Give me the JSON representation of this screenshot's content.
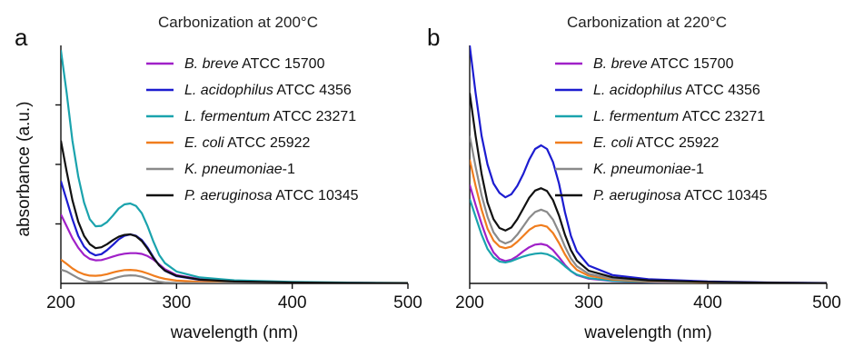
{
  "figure": {
    "ylabel": "absorbance (a.u.)"
  },
  "chart_data": [
    {
      "type": "line",
      "panel_letter": "a",
      "title": "Carbonization at 200°C",
      "xlabel": "wavelength (nm)",
      "ylabel": "absorbance (a.u.)",
      "xlim": [
        200,
        500
      ],
      "ylim": [
        0,
        1.0
      ],
      "xticks": [
        200,
        300,
        400,
        500
      ],
      "yticks": [
        0.25,
        0.5,
        0.75
      ],
      "grid": false,
      "legend_position": "top-right",
      "series": [
        {
          "name_italic": "B. breve",
          "name_rest": " ATCC 15700",
          "color": "#a020c8",
          "x": [
            200,
            205,
            210,
            215,
            220,
            225,
            230,
            235,
            240,
            245,
            250,
            255,
            260,
            265,
            270,
            275,
            280,
            285,
            290,
            300,
            320,
            350,
            400,
            450,
            500
          ],
          "y": [
            0.29,
            0.24,
            0.19,
            0.15,
            0.12,
            0.103,
            0.097,
            0.098,
            0.105,
            0.113,
            0.12,
            0.125,
            0.127,
            0.127,
            0.124,
            0.115,
            0.1,
            0.08,
            0.06,
            0.035,
            0.018,
            0.009,
            0.004,
            0.002,
            0.001
          ]
        },
        {
          "name_italic": "L. acidophilus",
          "name_rest": " ATCC 4356",
          "color": "#1c1cd0",
          "x": [
            200,
            205,
            210,
            215,
            220,
            225,
            230,
            235,
            240,
            245,
            250,
            255,
            260,
            265,
            270,
            275,
            280,
            285,
            290,
            300,
            320,
            350,
            400,
            450,
            500
          ],
          "y": [
            0.43,
            0.35,
            0.27,
            0.2,
            0.155,
            0.13,
            0.118,
            0.123,
            0.14,
            0.162,
            0.185,
            0.2,
            0.206,
            0.2,
            0.182,
            0.15,
            0.11,
            0.076,
            0.053,
            0.03,
            0.015,
            0.008,
            0.004,
            0.002,
            0.001
          ]
        },
        {
          "name_italic": "L. fermentum",
          "name_rest": " ATCC 23271",
          "color": "#1aa3ad",
          "x": [
            200,
            205,
            210,
            215,
            220,
            225,
            230,
            235,
            240,
            245,
            250,
            255,
            260,
            265,
            270,
            275,
            280,
            285,
            290,
            300,
            320,
            350,
            400,
            450,
            500
          ],
          "y": [
            0.98,
            0.8,
            0.6,
            0.45,
            0.34,
            0.27,
            0.24,
            0.242,
            0.258,
            0.285,
            0.315,
            0.332,
            0.336,
            0.325,
            0.295,
            0.24,
            0.175,
            0.12,
            0.085,
            0.05,
            0.025,
            0.013,
            0.006,
            0.003,
            0.002
          ]
        },
        {
          "name_italic": "E. coli",
          "name_rest": " ATCC 25922",
          "color": "#f07d1e",
          "x": [
            200,
            205,
            210,
            215,
            220,
            225,
            230,
            235,
            240,
            245,
            250,
            255,
            260,
            265,
            270,
            275,
            280,
            285,
            290,
            300,
            320,
            350,
            400,
            450,
            500
          ],
          "y": [
            0.1,
            0.082,
            0.063,
            0.048,
            0.038,
            0.033,
            0.032,
            0.034,
            0.039,
            0.046,
            0.052,
            0.056,
            0.057,
            0.055,
            0.05,
            0.042,
            0.033,
            0.025,
            0.019,
            0.012,
            0.007,
            0.004,
            0.002,
            0.001,
            0.001
          ]
        },
        {
          "name_italic": "K. pneumoniae",
          "name_rest": "-1",
          "color": "#8a8a8a",
          "x": [
            200,
            205,
            210,
            215,
            220,
            225,
            230,
            235,
            240,
            245,
            250,
            255,
            260,
            265,
            270,
            275,
            280,
            285,
            290,
            300,
            320,
            350,
            400,
            450,
            500
          ],
          "y": [
            0.058,
            0.05,
            0.036,
            0.022,
            0.012,
            0.007,
            0.006,
            0.008,
            0.013,
            0.02,
            0.027,
            0.032,
            0.034,
            0.033,
            0.028,
            0.02,
            0.012,
            0.007,
            0.004,
            0.002,
            0.001,
            0.001,
            0.0,
            0.0,
            0.0
          ]
        },
        {
          "name_italic": "P. aeruginosa",
          "name_rest": " ATCC 10345",
          "color": "#111111",
          "x": [
            200,
            205,
            210,
            215,
            220,
            225,
            230,
            235,
            240,
            245,
            250,
            255,
            260,
            265,
            270,
            275,
            280,
            285,
            290,
            300,
            320,
            350,
            400,
            450,
            500
          ],
          "y": [
            0.6,
            0.47,
            0.35,
            0.26,
            0.2,
            0.165,
            0.148,
            0.152,
            0.165,
            0.182,
            0.196,
            0.204,
            0.206,
            0.198,
            0.178,
            0.145,
            0.107,
            0.076,
            0.054,
            0.032,
            0.016,
            0.008,
            0.004,
            0.002,
            0.001
          ]
        }
      ]
    },
    {
      "type": "line",
      "panel_letter": "b",
      "title": "Carbonization at 220°C",
      "xlabel": "wavelength (nm)",
      "ylabel": "",
      "xlim": [
        200,
        500
      ],
      "ylim": [
        0,
        1.0
      ],
      "xticks": [
        200,
        300,
        400,
        500
      ],
      "yticks": [],
      "grid": false,
      "legend_position": "top-right",
      "series": [
        {
          "name_italic": "B. breve",
          "name_rest": " ATCC 15700",
          "color": "#a020c8",
          "x": [
            200,
            205,
            210,
            215,
            220,
            225,
            230,
            235,
            240,
            245,
            250,
            255,
            260,
            265,
            270,
            275,
            280,
            285,
            290,
            300,
            320,
            350,
            400,
            450,
            500
          ],
          "y": [
            0.415,
            0.33,
            0.25,
            0.18,
            0.13,
            0.103,
            0.094,
            0.1,
            0.115,
            0.135,
            0.152,
            0.163,
            0.166,
            0.16,
            0.14,
            0.11,
            0.078,
            0.052,
            0.035,
            0.02,
            0.01,
            0.005,
            0.002,
            0.001,
            0.0
          ]
        },
        {
          "name_italic": "L. acidophilus",
          "name_rest": " ATCC 4356",
          "color": "#1c1cd0",
          "x": [
            200,
            205,
            210,
            215,
            220,
            225,
            230,
            235,
            240,
            245,
            250,
            255,
            260,
            265,
            270,
            275,
            280,
            285,
            290,
            300,
            320,
            350,
            400,
            450,
            500
          ],
          "y": [
            1.0,
            0.8,
            0.62,
            0.5,
            0.42,
            0.38,
            0.362,
            0.375,
            0.41,
            0.46,
            0.52,
            0.565,
            0.58,
            0.565,
            0.51,
            0.42,
            0.3,
            0.2,
            0.135,
            0.075,
            0.035,
            0.018,
            0.008,
            0.004,
            0.002
          ]
        },
        {
          "name_italic": "L. fermentum",
          "name_rest": " ATCC 23271",
          "color": "#1aa3ad",
          "x": [
            200,
            205,
            210,
            215,
            220,
            225,
            230,
            235,
            240,
            245,
            250,
            255,
            260,
            265,
            270,
            275,
            280,
            285,
            290,
            300,
            320,
            350,
            400,
            450,
            500
          ],
          "y": [
            0.355,
            0.28,
            0.205,
            0.145,
            0.11,
            0.092,
            0.088,
            0.094,
            0.104,
            0.113,
            0.12,
            0.125,
            0.127,
            0.123,
            0.112,
            0.094,
            0.072,
            0.052,
            0.037,
            0.022,
            0.011,
            0.006,
            0.003,
            0.001,
            0.0
          ]
        },
        {
          "name_italic": "E. coli",
          "name_rest": " ATCC 25922",
          "color": "#f07d1e",
          "x": [
            200,
            205,
            210,
            215,
            220,
            225,
            230,
            235,
            240,
            245,
            250,
            255,
            260,
            265,
            270,
            275,
            280,
            285,
            290,
            300,
            320,
            350,
            400,
            450,
            500
          ],
          "y": [
            0.52,
            0.41,
            0.31,
            0.23,
            0.18,
            0.155,
            0.148,
            0.155,
            0.175,
            0.2,
            0.225,
            0.24,
            0.245,
            0.238,
            0.212,
            0.17,
            0.122,
            0.083,
            0.057,
            0.032,
            0.016,
            0.008,
            0.004,
            0.002,
            0.001
          ]
        },
        {
          "name_italic": "K. pneumoniae",
          "name_rest": "-1",
          "color": "#8a8a8a",
          "x": [
            200,
            205,
            210,
            215,
            220,
            225,
            230,
            235,
            240,
            245,
            250,
            255,
            260,
            265,
            270,
            275,
            280,
            285,
            290,
            300,
            320,
            350,
            400,
            450,
            500
          ],
          "y": [
            0.62,
            0.49,
            0.37,
            0.28,
            0.215,
            0.18,
            0.168,
            0.178,
            0.205,
            0.24,
            0.275,
            0.3,
            0.31,
            0.3,
            0.268,
            0.215,
            0.155,
            0.105,
            0.072,
            0.04,
            0.02,
            0.01,
            0.005,
            0.002,
            0.001
          ]
        },
        {
          "name_italic": "P. aeruginosa",
          "name_rest": " ATCC 10345",
          "color": "#111111",
          "x": [
            200,
            205,
            210,
            215,
            220,
            225,
            230,
            235,
            240,
            245,
            250,
            255,
            260,
            265,
            270,
            275,
            280,
            285,
            290,
            300,
            320,
            350,
            400,
            450,
            500
          ],
          "y": [
            0.8,
            0.62,
            0.46,
            0.34,
            0.27,
            0.233,
            0.222,
            0.235,
            0.27,
            0.315,
            0.36,
            0.39,
            0.4,
            0.388,
            0.35,
            0.285,
            0.205,
            0.14,
            0.096,
            0.053,
            0.026,
            0.013,
            0.006,
            0.003,
            0.001
          ]
        }
      ]
    }
  ]
}
